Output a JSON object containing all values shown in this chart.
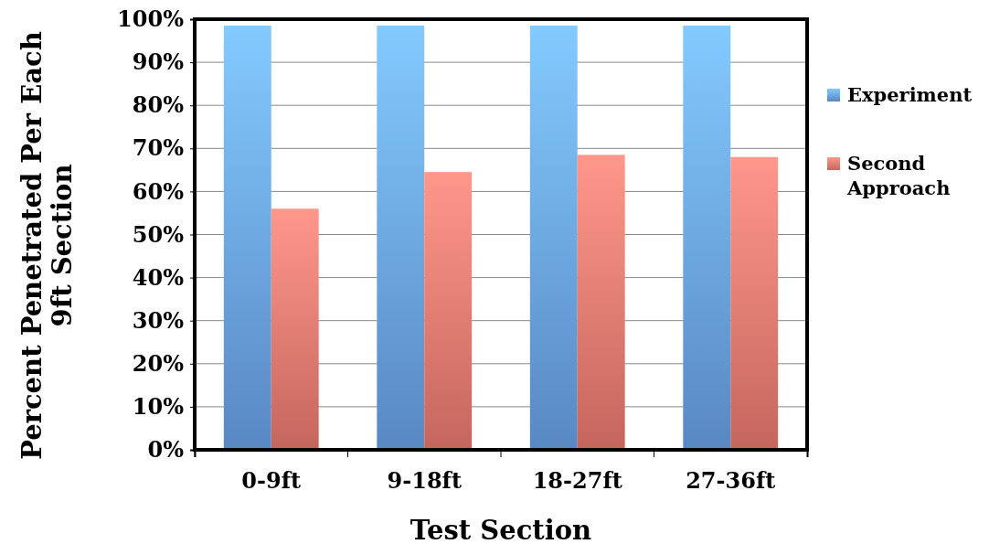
{
  "chart_data": {
    "type": "bar",
    "xlabel": "Test Section",
    "ylabel": "Percent Penetrated Per Each\n9ft Section",
    "categories": [
      "0-9ft",
      "9-18ft",
      "18-27ft",
      "27-36ft"
    ],
    "series": [
      {
        "name": "Experiment",
        "color": "#6aa3ea",
        "values": [
          98.5,
          98.5,
          98.5,
          98.5
        ]
      },
      {
        "name": "Second\nApproach",
        "color": "#ec7a70",
        "values": [
          56,
          64.5,
          68.5,
          68
        ]
      }
    ],
    "ylim": [
      0,
      100
    ],
    "yticks": [
      {
        "value": 0,
        "label": "0%"
      },
      {
        "value": 10,
        "label": "10%"
      },
      {
        "value": 20,
        "label": "20%"
      },
      {
        "value": 30,
        "label": "30%"
      },
      {
        "value": 40,
        "label": "40%"
      },
      {
        "value": 50,
        "label": "50%"
      },
      {
        "value": 60,
        "label": "60%"
      },
      {
        "value": 70,
        "label": "70%"
      },
      {
        "value": 80,
        "label": "80%"
      },
      {
        "value": 90,
        "label": "90%"
      },
      {
        "value": 100,
        "label": "100%"
      }
    ],
    "grid": "y",
    "legend": "right"
  }
}
